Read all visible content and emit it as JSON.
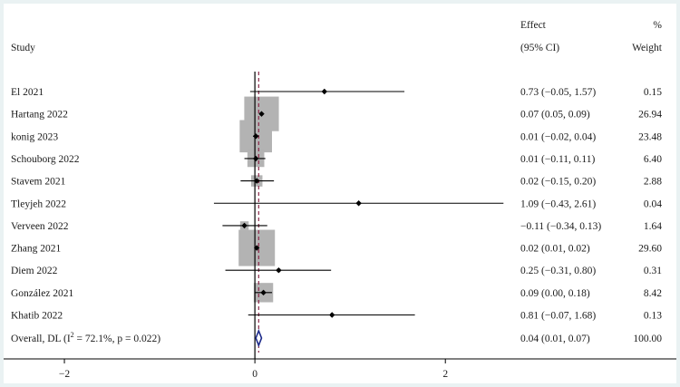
{
  "chart_data": {
    "type": "forest",
    "header": {
      "study": "Study",
      "effect_line1": "Effect",
      "effect_line2": "(95% CI)",
      "weight_line1": "%",
      "weight_line2": "Weight"
    },
    "studies": [
      {
        "name": "El 2021",
        "effect": 0.73,
        "lower": -0.05,
        "upper": 1.57,
        "ci_text": "0.73 (−0.05, 1.57)",
        "weight": 0.15,
        "weight_text": "0.15"
      },
      {
        "name": "Hartang 2022",
        "effect": 0.07,
        "lower": 0.05,
        "upper": 0.09,
        "ci_text": "0.07 (0.05, 0.09)",
        "weight": 26.94,
        "weight_text": "26.94"
      },
      {
        "name": "konig 2023",
        "effect": 0.01,
        "lower": -0.02,
        "upper": 0.04,
        "ci_text": "0.01 (−0.02, 0.04)",
        "weight": 23.48,
        "weight_text": "23.48"
      },
      {
        "name": "Schouborg 2022",
        "effect": 0.01,
        "lower": -0.11,
        "upper": 0.11,
        "ci_text": "0.01 (−0.11, 0.11)",
        "weight": 6.4,
        "weight_text": "6.40"
      },
      {
        "name": "Stavem 2021",
        "effect": 0.02,
        "lower": -0.15,
        "upper": 0.2,
        "ci_text": "0.02 (−0.15, 0.20)",
        "weight": 2.88,
        "weight_text": "2.88"
      },
      {
        "name": "Tleyjeh 2022",
        "effect": 1.09,
        "lower": -0.43,
        "upper": 2.61,
        "ci_text": "1.09 (−0.43, 2.61)",
        "weight": 0.04,
        "weight_text": "0.04"
      },
      {
        "name": "Verveen 2022",
        "effect": -0.11,
        "lower": -0.34,
        "upper": 0.13,
        "ci_text": "−0.11 (−0.34, 0.13)",
        "weight": 1.64,
        "weight_text": "1.64"
      },
      {
        "name": "Zhang 2021",
        "effect": 0.02,
        "lower": 0.01,
        "upper": 0.02,
        "ci_text": "0.02 (0.01, 0.02)",
        "weight": 29.6,
        "weight_text": "29.60"
      },
      {
        "name": "Diem 2022",
        "effect": 0.25,
        "lower": -0.31,
        "upper": 0.8,
        "ci_text": "0.25 (−0.31, 0.80)",
        "weight": 0.31,
        "weight_text": "0.31"
      },
      {
        "name": "González 2021",
        "effect": 0.09,
        "lower": 0.0,
        "upper": 0.18,
        "ci_text": "0.09 (0.00, 0.18)",
        "weight": 8.42,
        "weight_text": "8.42"
      },
      {
        "name": "Khatib 2022",
        "effect": 0.81,
        "lower": -0.07,
        "upper": 1.68,
        "ci_text": "0.81 (−0.07, 1.68)",
        "weight": 0.13,
        "weight_text": "0.13"
      }
    ],
    "overall": {
      "label_prefix": "Overall, DL (I",
      "label_sup": "2",
      "label_suffix": " = 72.1%, p = 0.022)",
      "effect": 0.04,
      "lower": 0.01,
      "upper": 0.07,
      "ci_text": "0.04 (0.01, 0.07)",
      "weight_text": "100.00"
    },
    "x_ticks": [
      {
        "value": -2,
        "label": "−2"
      },
      {
        "value": 0,
        "label": "0"
      },
      {
        "value": 2,
        "label": "2"
      }
    ],
    "xlim": [
      -2.6,
      2.75
    ],
    "null_line": 0,
    "colors": {
      "box": "#b3b3b3",
      "point": "#000000",
      "ci_line": "#000000",
      "overall_line": "#8b2a4a",
      "diamond": "#1d2a8a",
      "background": "#eaf2f3"
    }
  }
}
